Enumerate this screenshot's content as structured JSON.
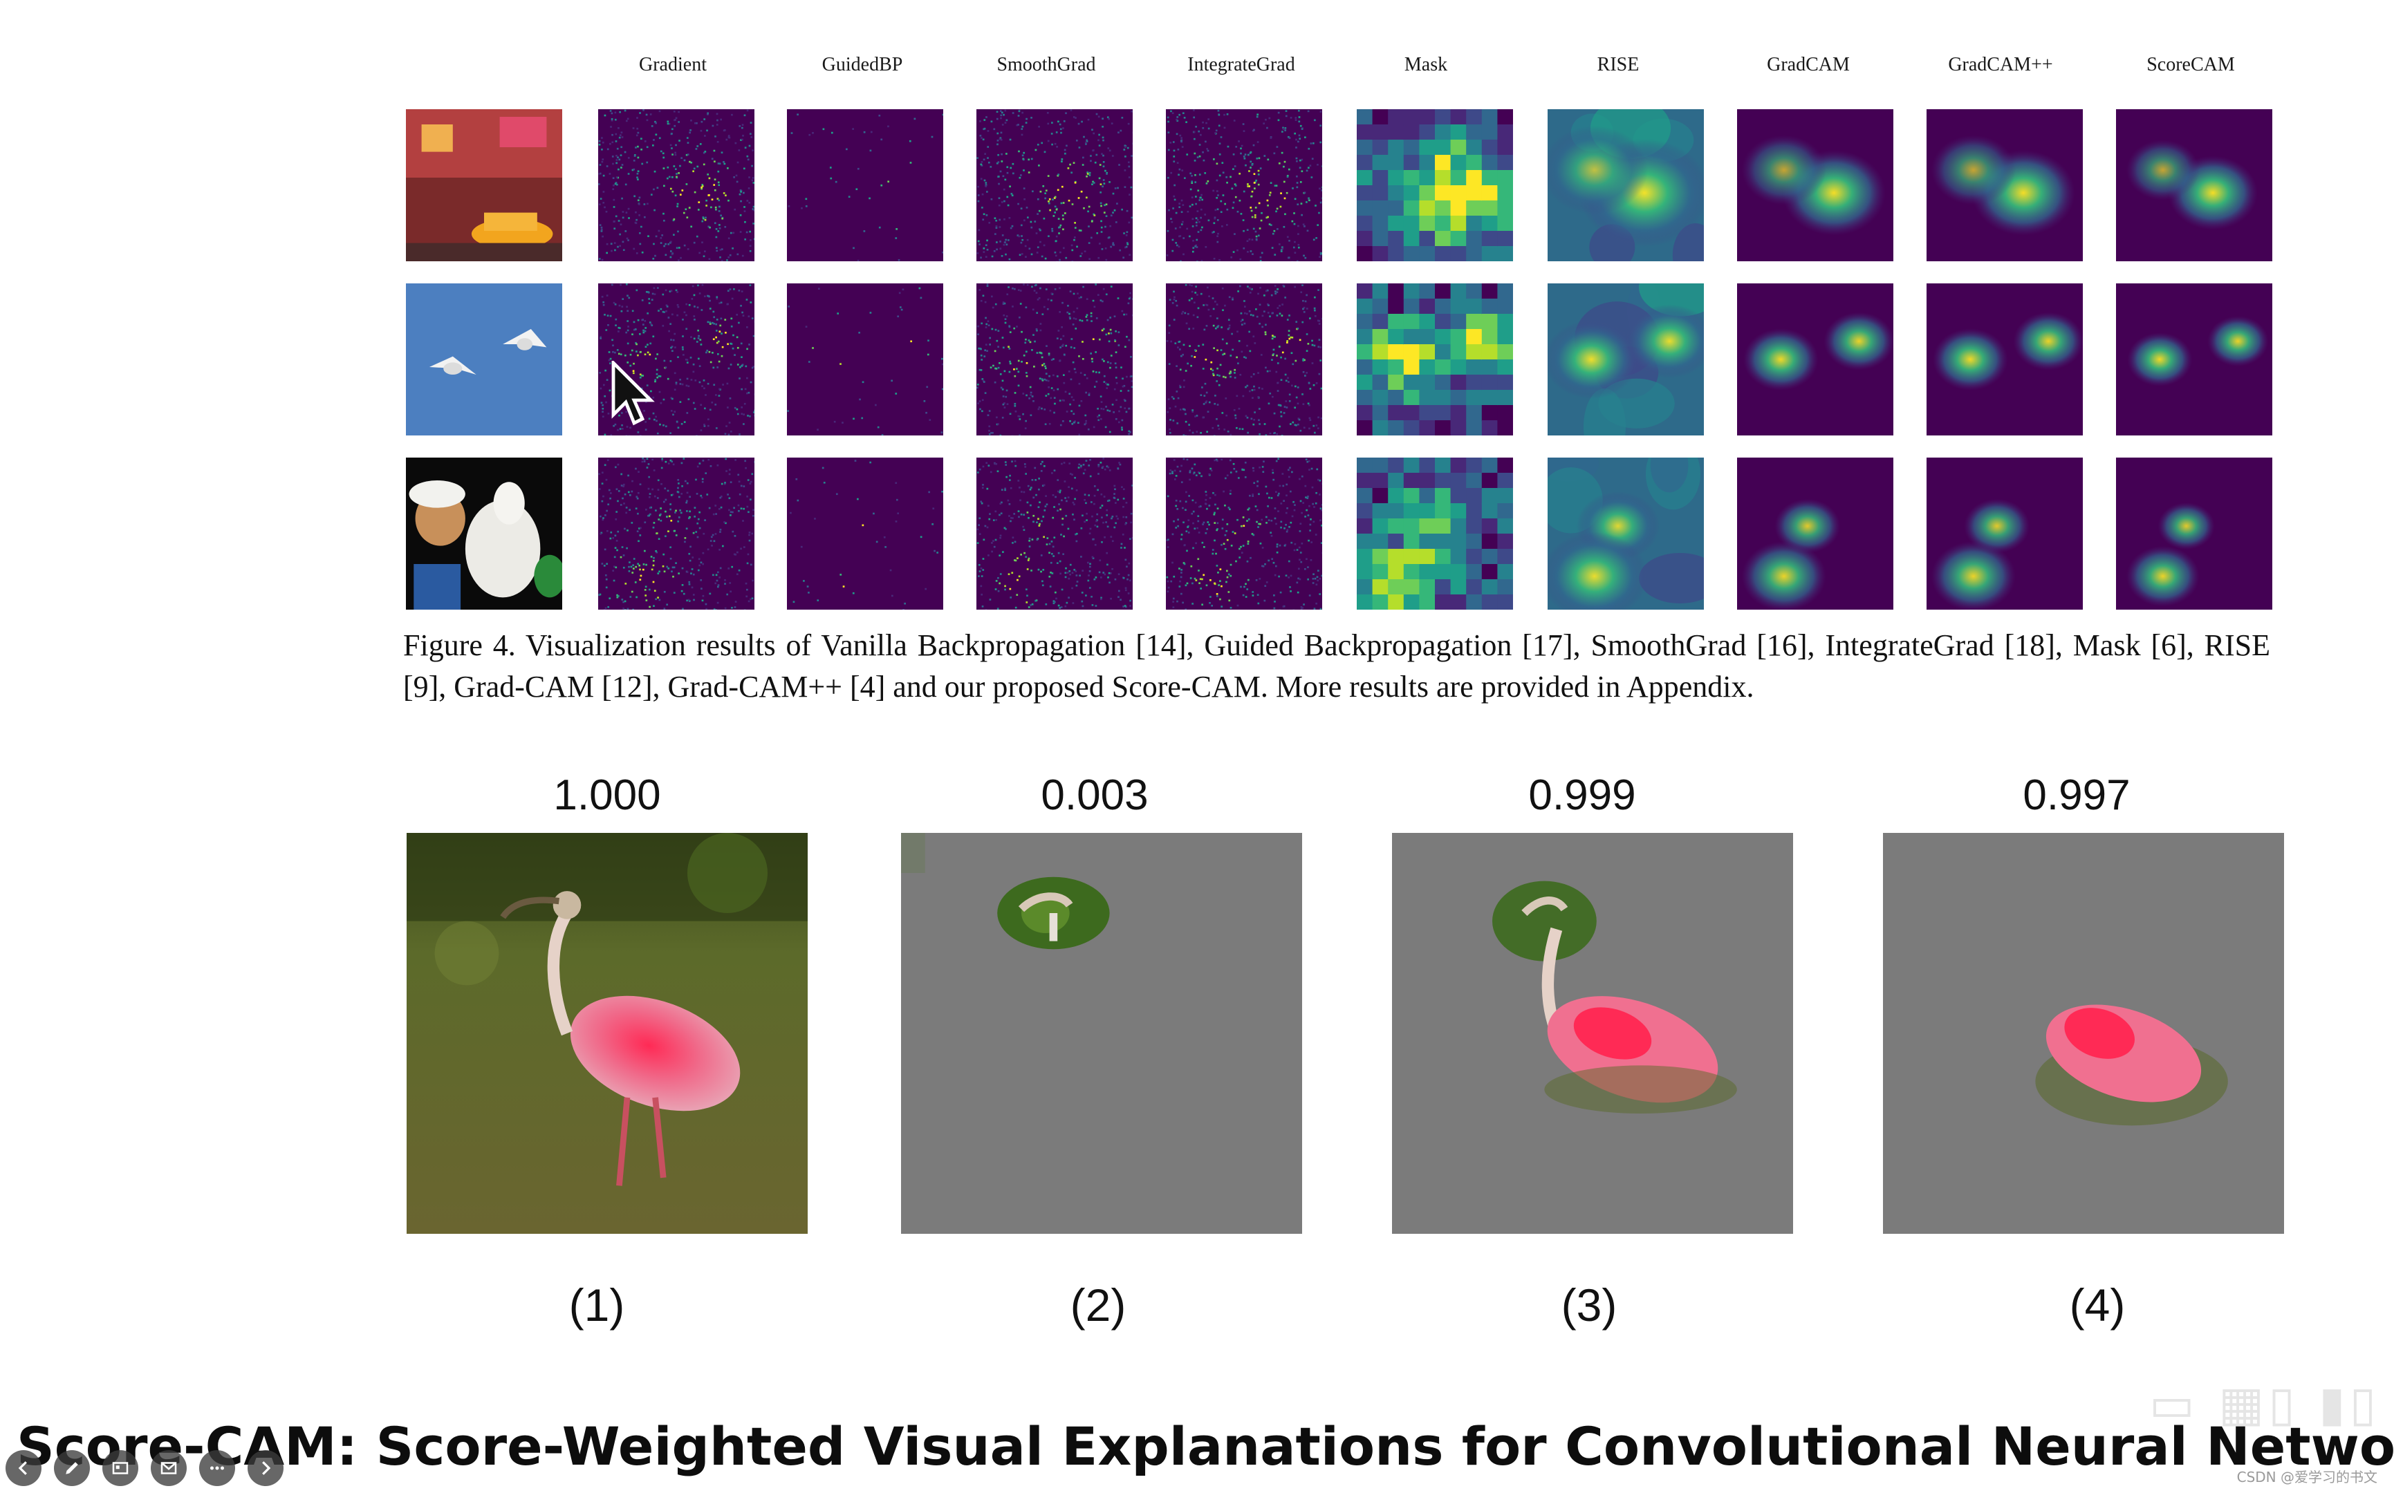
{
  "figure": {
    "columns": [
      "Gradient",
      "GuidedBP",
      "SmoothGrad",
      "IntegrateGrad",
      "Mask",
      "RISE",
      "GradCAM",
      "GradCAM++",
      "ScoreCAM"
    ],
    "rows": [
      "street-taxi",
      "birds",
      "wolf-child"
    ],
    "caption": "Figure 4. Visualization results of Vanilla Backpropagation [14], Guided Backpropagation [17], SmoothGrad [16], IntegrateGrad [18], Mask [6], RISE [9], Grad-CAM [12], Grad-CAM++ [4] and our proposed Score-CAM. More results are provided in Appendix."
  },
  "panels": {
    "scores": [
      "1.000",
      "0.003",
      "0.999",
      "0.997"
    ],
    "labels": [
      "(1)",
      "(2)",
      "(3)",
      "(4)"
    ]
  },
  "slide": {
    "title": "Score-CAM: Score-Weighted Visual Explanations for Convolutional Neural Networks"
  },
  "toolbar": {
    "icons": [
      "back-icon",
      "pen-icon",
      "slides-icon",
      "mail-icon",
      "more-icon",
      "forward-icon"
    ]
  },
  "watermark": "CSDN @爱学习的书文",
  "colors": {
    "viridis_dark": "#440154",
    "viridis_mid": "#21918c",
    "viridis_bright": "#fde725",
    "gray_mask": "#7a7a7a"
  }
}
